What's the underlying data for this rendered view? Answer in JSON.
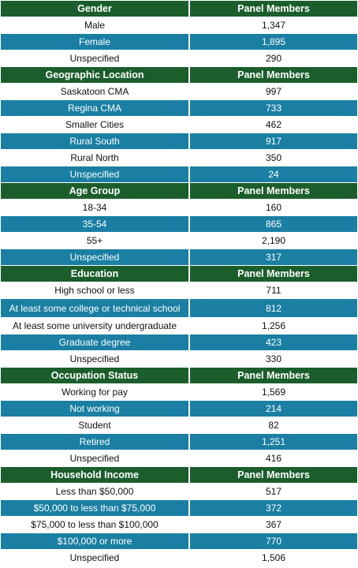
{
  "sections": [
    {
      "title": "Gender",
      "col2": "Panel Members",
      "rows": [
        {
          "label": "Male",
          "value": "1,347"
        },
        {
          "label": "Female",
          "value": "1,895"
        },
        {
          "label": "Unspecified",
          "value": "290"
        }
      ]
    },
    {
      "title": "Geographic Location",
      "col2": "Panel Members",
      "rows": [
        {
          "label": "Saskatoon CMA",
          "value": "997"
        },
        {
          "label": "Regina CMA",
          "value": "733"
        },
        {
          "label": "Smaller Cities",
          "value": "462"
        },
        {
          "label": "Rural South",
          "value": "917"
        },
        {
          "label": "Rural North",
          "value": "350"
        },
        {
          "label": "Unspecified",
          "value": "24"
        }
      ]
    },
    {
      "title": "Age Group",
      "col2": "Panel Members",
      "rows": [
        {
          "label": "18-34",
          "value": "160"
        },
        {
          "label": "35-54",
          "value": "865"
        },
        {
          "label": "55+",
          "value": "2,190"
        },
        {
          "label": "Unspecified",
          "value": "317"
        }
      ]
    },
    {
      "title": "Education",
      "col2": "Panel Members",
      "rows": [
        {
          "label": "High school or less",
          "value": "711"
        },
        {
          "label": "At least some college or technical school",
          "value": "812"
        },
        {
          "label": "At least some university undergraduate",
          "value": "1,256"
        },
        {
          "label": "Graduate degree",
          "value": "423"
        },
        {
          "label": "Unspecified",
          "value": "330"
        }
      ]
    },
    {
      "title": "Occupation Status",
      "col2": "Panel Members",
      "rows": [
        {
          "label": "Working for pay",
          "value": "1,569"
        },
        {
          "label": "Not working",
          "value": "214"
        },
        {
          "label": "Student",
          "value": "82"
        },
        {
          "label": "Retired",
          "value": "1,251"
        },
        {
          "label": "Unspecified",
          "value": "416"
        }
      ]
    },
    {
      "title": "Household Income",
      "col2": "Panel Members",
      "rows": [
        {
          "label": "Less than $50,000",
          "value": "517"
        },
        {
          "label": "$50,000 to less than $75,000",
          "value": "372"
        },
        {
          "label": "$75,000 to less than $100,000",
          "value": "367"
        },
        {
          "label": "$100,000 or more",
          "value": "770"
        },
        {
          "label": "Unspecified",
          "value": "1,506"
        }
      ]
    }
  ]
}
